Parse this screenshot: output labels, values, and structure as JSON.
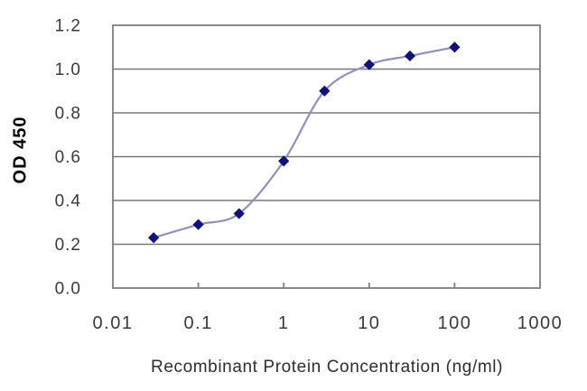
{
  "figure": {
    "background": "#ffffff"
  },
  "chart_data": {
    "type": "line",
    "title": "",
    "xlabel": "Recombinant Protein Concentration (ng/ml)",
    "ylabel": "OD 450",
    "x_scale": "log",
    "y_scale": "linear",
    "xlim": [
      0.01,
      1000
    ],
    "ylim": [
      0,
      1.2
    ],
    "x_tick_values": [
      0.01,
      0.1,
      1,
      10,
      100,
      1000
    ],
    "x_tick_labels": [
      "0.01",
      "0.1",
      "1",
      "10",
      "100",
      "1000"
    ],
    "y_tick_values": [
      0,
      0.2,
      0.4,
      0.6,
      0.8,
      1.0,
      1.2
    ],
    "y_tick_labels": [
      "0.0",
      "0.2",
      "0.4",
      "0.6",
      "0.8",
      "1.0",
      "1.2"
    ],
    "grid": "horizontal",
    "legend": "none",
    "series": [
      {
        "name": "OD 450 vs concentration",
        "marker": "diamond",
        "smooth": true,
        "x": [
          0.03,
          0.1,
          0.3,
          1,
          3,
          10,
          30,
          100
        ],
        "y": [
          0.23,
          0.29,
          0.34,
          0.58,
          0.9,
          1.02,
          1.06,
          1.1
        ],
        "line_color": "#8f8fc6",
        "marker_color": "#10107e"
      }
    ],
    "colors": {
      "grid": "#787878",
      "axis": "#7e7e7e",
      "tick_text": "#3a3a3a",
      "label_text": "#2d2d2d"
    }
  }
}
